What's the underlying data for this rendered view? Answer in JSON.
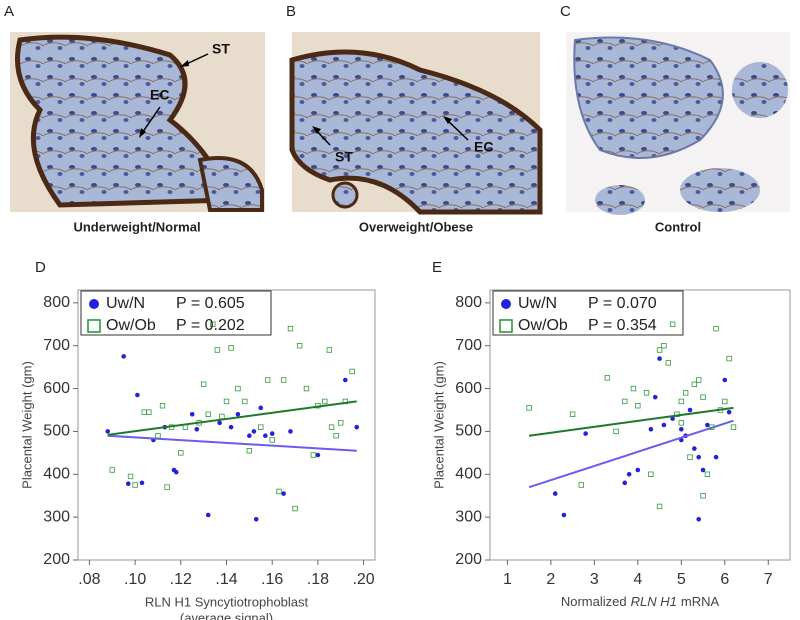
{
  "image_panels": [
    {
      "letter": "A",
      "caption": "Underweight/Normal",
      "labels": [
        "ST",
        "EC"
      ]
    },
    {
      "letter": "B",
      "caption": "Overweight/Obese",
      "labels": [
        "ST",
        "EC"
      ]
    },
    {
      "letter": "C",
      "caption": "Control",
      "labels": []
    }
  ],
  "chart_data": [
    {
      "type": "scatter",
      "letter": "D",
      "ylabel": "Placental Weight (gm)",
      "xlabel": [
        "RLN H1 Syncytiotrophoblast",
        "(average signal)"
      ],
      "xlim": [
        0.075,
        0.205
      ],
      "ylim": [
        200,
        830
      ],
      "xticks": [
        {
          "value": 0.08,
          "label": ".08"
        },
        {
          "value": 0.1,
          "label": ".10"
        },
        {
          "value": 0.12,
          "label": ".12"
        },
        {
          "value": 0.14,
          "label": ".14"
        },
        {
          "value": 0.16,
          "label": ".16"
        },
        {
          "value": 0.18,
          "label": ".18"
        },
        {
          "value": 0.2,
          "label": ".20"
        }
      ],
      "yticks": [
        200,
        300,
        400,
        500,
        600,
        700,
        800
      ],
      "series": [
        {
          "name": "Uw/N",
          "p_label": "P = 0.605",
          "color": "#2222dd",
          "marker": "dot",
          "x": [
            0.088,
            0.095,
            0.097,
            0.101,
            0.103,
            0.108,
            0.113,
            0.117,
            0.118,
            0.125,
            0.127,
            0.132,
            0.137,
            0.142,
            0.145,
            0.15,
            0.152,
            0.153,
            0.157,
            0.16,
            0.165,
            0.168,
            0.18,
            0.192,
            0.197,
            0.155
          ],
          "values": [
            500,
            675,
            378,
            585,
            380,
            480,
            510,
            410,
            405,
            540,
            505,
            305,
            520,
            510,
            540,
            490,
            500,
            295,
            490,
            495,
            355,
            500,
            445,
            620,
            510,
            555
          ],
          "trend": {
            "x": [
              0.088,
              0.197
            ],
            "y": [
              490,
              455
            ],
            "color": "#6a5cf0"
          }
        },
        {
          "name": "Ow/Ob",
          "p_label": "P = 0.202",
          "color": "#2e9a3a",
          "marker": "square",
          "x": [
            0.09,
            0.098,
            0.1,
            0.104,
            0.106,
            0.11,
            0.112,
            0.114,
            0.116,
            0.12,
            0.122,
            0.128,
            0.13,
            0.132,
            0.134,
            0.136,
            0.138,
            0.14,
            0.142,
            0.145,
            0.148,
            0.15,
            0.155,
            0.158,
            0.16,
            0.163,
            0.165,
            0.168,
            0.17,
            0.172,
            0.175,
            0.178,
            0.18,
            0.183,
            0.186,
            0.188,
            0.19,
            0.192,
            0.195,
            0.185
          ],
          "values": [
            410,
            395,
            375,
            545,
            545,
            490,
            560,
            370,
            510,
            450,
            510,
            520,
            610,
            540,
            750,
            690,
            535,
            570,
            695,
            600,
            570,
            455,
            510,
            620,
            480,
            360,
            620,
            740,
            320,
            700,
            600,
            445,
            560,
            570,
            510,
            490,
            520,
            570,
            640,
            690
          ],
          "trend": {
            "x": [
              0.088,
              0.197
            ],
            "y": [
              492,
              570
            ],
            "color": "#1e7a2a"
          }
        }
      ]
    },
    {
      "type": "scatter",
      "letter": "E",
      "ylabel": "Placental Weight (gm)",
      "xlabel_parts": [
        "Normalized",
        "RLN H1",
        "mRNA"
      ],
      "xlim": [
        0.6,
        7.5
      ],
      "ylim": [
        200,
        830
      ],
      "xticks": [
        1,
        2,
        3,
        4,
        5,
        6,
        7
      ],
      "yticks": [
        200,
        300,
        400,
        500,
        600,
        700,
        800
      ],
      "series": [
        {
          "name": "Uw/N",
          "p_label": "P = 0.070",
          "color": "#2222dd",
          "marker": "dot",
          "x": [
            2.1,
            2.3,
            2.8,
            3.7,
            3.8,
            4.0,
            4.3,
            4.4,
            4.5,
            4.6,
            4.8,
            5.0,
            5.0,
            5.1,
            5.2,
            5.3,
            5.4,
            5.4,
            5.5,
            5.6,
            5.8,
            6.0,
            6.1
          ],
          "values": [
            355,
            305,
            495,
            380,
            400,
            410,
            505,
            580,
            670,
            515,
            530,
            505,
            480,
            490,
            550,
            460,
            440,
            295,
            410,
            515,
            440,
            620,
            545
          ],
          "trend": {
            "x": [
              1.5,
              6.2
            ],
            "y": [
              370,
              525
            ],
            "color": "#6a5cf0"
          }
        },
        {
          "name": "Ow/Ob",
          "p_label": "P = 0.354",
          "color": "#2e9a3a",
          "marker": "square",
          "x": [
            1.5,
            2.5,
            2.7,
            3.3,
            3.5,
            3.7,
            3.9,
            4.0,
            4.2,
            4.3,
            4.5,
            4.6,
            4.7,
            4.8,
            4.9,
            5.0,
            5.0,
            5.1,
            5.2,
            5.3,
            5.4,
            5.5,
            5.6,
            5.7,
            5.8,
            5.9,
            6.0,
            6.1,
            6.2,
            5.5,
            4.5
          ],
          "values": [
            555,
            540,
            375,
            625,
            500,
            570,
            600,
            560,
            590,
            400,
            690,
            700,
            660,
            750,
            540,
            520,
            570,
            590,
            440,
            610,
            620,
            580,
            400,
            510,
            740,
            550,
            570,
            670,
            510,
            350,
            325
          ],
          "trend": {
            "x": [
              1.5,
              6.2
            ],
            "y": [
              490,
              555
            ],
            "color": "#1e7a2a"
          }
        }
      ]
    }
  ]
}
